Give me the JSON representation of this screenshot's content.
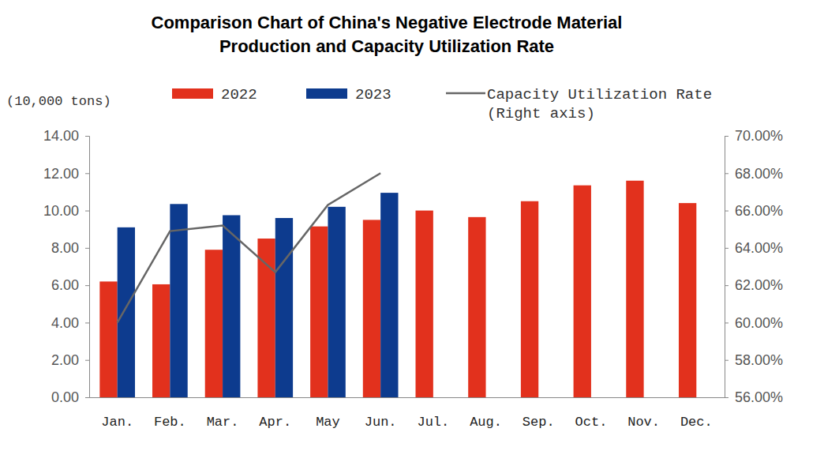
{
  "chart_data": {
    "type": "bar",
    "title": "Comparison Chart of China's Negative Electrode Material Production and Capacity Utilization Rate",
    "y_label": "(10,000 tons)",
    "categories": [
      "Jan.",
      "Feb.",
      "Mar.",
      "Apr.",
      "May",
      "Jun.",
      "Jul.",
      "Aug.",
      "Sep.",
      "Oct.",
      "Nov.",
      "Dec."
    ],
    "series": [
      {
        "name": "2022",
        "color": "#e2311d",
        "type": "bar",
        "values": [
          6.2,
          6.05,
          7.9,
          8.5,
          9.15,
          9.5,
          10.0,
          9.65,
          10.5,
          11.35,
          11.6,
          10.4
        ]
      },
      {
        "name": "2023",
        "color": "#0d3b8e",
        "type": "bar",
        "values": [
          9.1,
          10.35,
          9.75,
          9.6,
          10.2,
          10.95,
          null,
          null,
          null,
          null,
          null,
          null
        ]
      },
      {
        "name": "Capacity Utilization Rate (Right axis)",
        "color": "#666666",
        "type": "line",
        "axis": "y2",
        "values": [
          60.0,
          64.9,
          65.2,
          62.7,
          66.3,
          68.0,
          null,
          null,
          null,
          null,
          null,
          null
        ]
      }
    ],
    "ylim": [
      0,
      14
    ],
    "yticks": [
      {
        "value": 0,
        "label": "0.00"
      },
      {
        "value": 2,
        "label": "2.00"
      },
      {
        "value": 4,
        "label": "4.00"
      },
      {
        "value": 6,
        "label": "6.00"
      },
      {
        "value": 8,
        "label": "8.00"
      },
      {
        "value": 10,
        "label": "10.00"
      },
      {
        "value": 12,
        "label": "12.00"
      },
      {
        "value": 14,
        "label": "14.00"
      }
    ],
    "y2lim": [
      56,
      70
    ],
    "y2ticks": [
      {
        "value": 56,
        "label": "56.00%"
      },
      {
        "value": 58,
        "label": "58.00%"
      },
      {
        "value": 60,
        "label": "60.00%"
      },
      {
        "value": 62,
        "label": "62.00%"
      },
      {
        "value": 64,
        "label": "64.00%"
      },
      {
        "value": 66,
        "label": "66.00%"
      },
      {
        "value": 68,
        "label": "68.00%"
      },
      {
        "value": 70,
        "label": "70.00%"
      }
    ],
    "grid": false,
    "legend": "top"
  }
}
